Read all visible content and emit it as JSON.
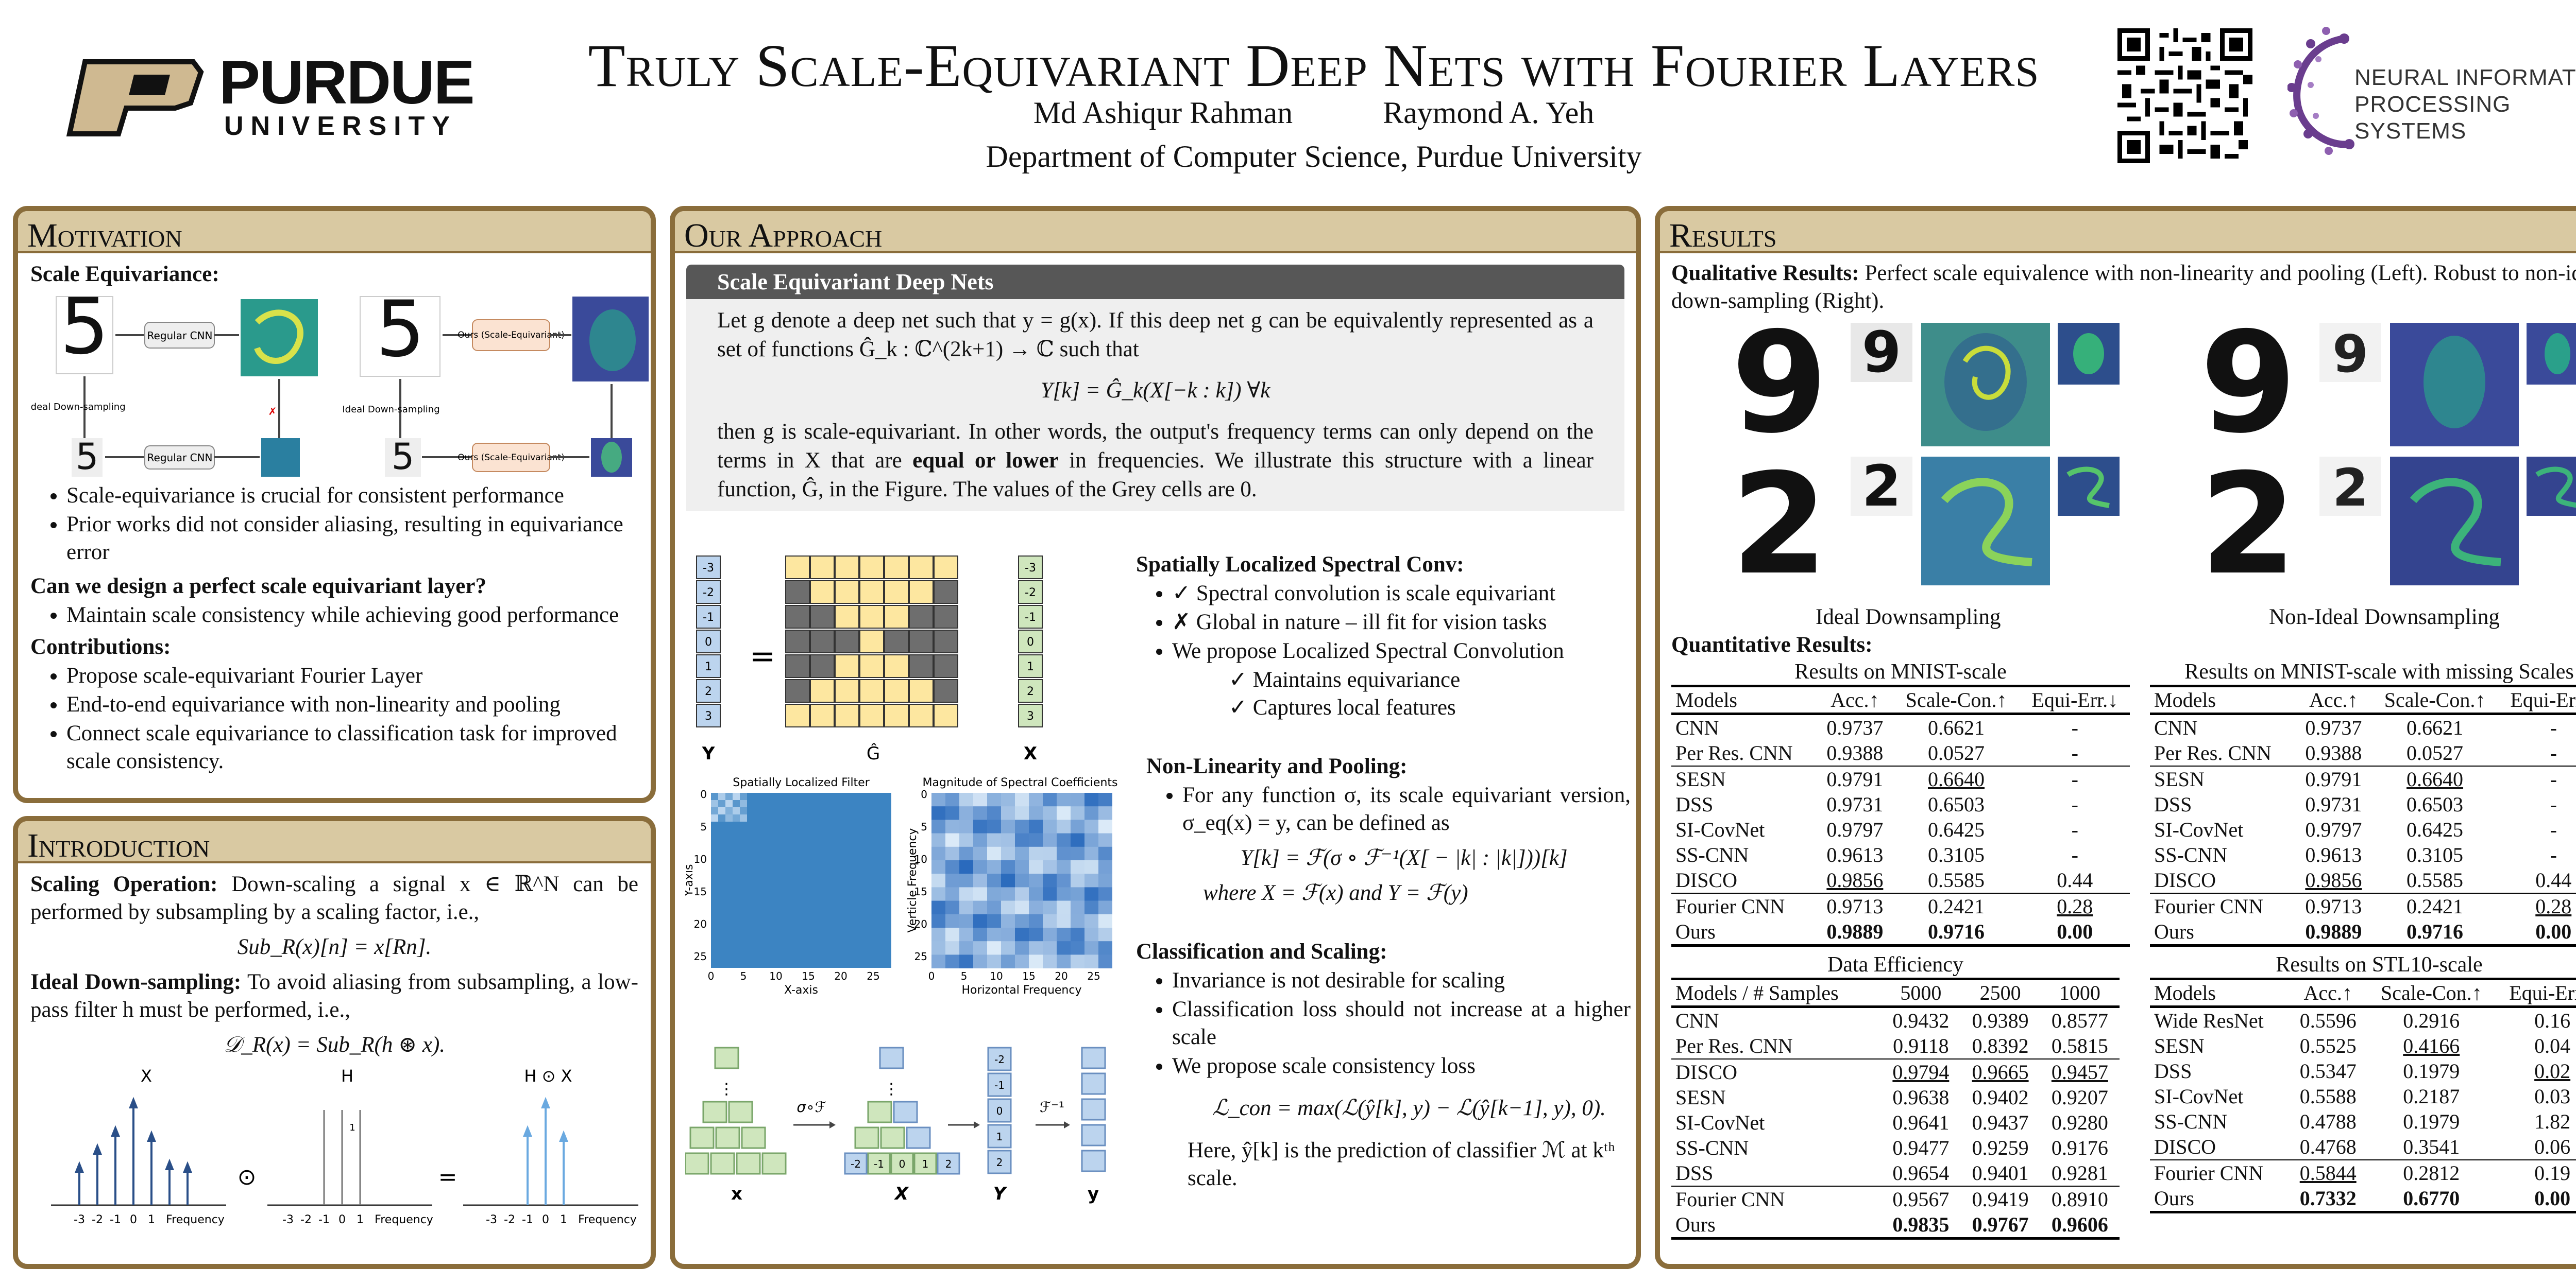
{
  "header": {
    "logo_left": "PURDUE",
    "logo_left_sub": "UNIVERSITY",
    "title": "Truly Scale-Equivariant Deep Nets with Fourier Layers",
    "authors": [
      "Md Ashiqur Rahman",
      "Raymond A. Yeh"
    ],
    "affiliation": "Department of Computer Science, Purdue University",
    "logo_right_l1": "NEURAL INFORMATION",
    "logo_right_l2": "PROCESSING SYSTEMS"
  },
  "motivation": {
    "title": "Motivation",
    "scale_eq": "Scale Equivariance:",
    "fig_labels": {
      "regular_cnn": "Regular CNN",
      "ours": "Ours (Scale-Equivariant)",
      "ideal_ds": "Ideal Down-sampling"
    },
    "bullets1": [
      "Scale-equivariance is crucial for consistent performance",
      "Prior works did not consider aliasing, resulting in equivariance error"
    ],
    "question": "Can we design a perfect scale equivariant layer?",
    "bullets2": [
      "Maintain scale consistency while achieving good performance"
    ],
    "contrib": "Contributions:",
    "bullets3": [
      "Propose scale-equivariant Fourier Layer",
      "End-to-end equivariance with non-linearity and pooling",
      "Connect scale equivariance to classification task for improved scale consistency."
    ]
  },
  "intro": {
    "title": "Introduction",
    "scaling_hdr": "Scaling Operation:",
    "scaling_txt": " Down-scaling a signal x ∈ ℝ^N can be performed by subsampling by a scaling factor, i.e.,",
    "eq1": "Sub_R(x)[n] = x[Rn].",
    "ideal_hdr": "Ideal Down-sampling:",
    "ideal_txt": " To avoid aliasing from subsampling, a low-pass filter h must be performed, i.e.,",
    "eq2": "𝒟_R(x) = Sub_R(h ⊛ x).",
    "plot_labels": {
      "x": "X",
      "h": "H",
      "hx": "H ⊙ X",
      "freq": "Frequency",
      "odot": "⊙",
      "eq": "=",
      "one": "1"
    },
    "ticks": [
      "-3",
      "-2",
      "-1",
      "0",
      "1"
    ]
  },
  "approach": {
    "title": "Our Approach",
    "sub": "Scale Equivariant Deep Nets",
    "p1": "Let g denote a deep net such that y = g(x). If this deep net g can be equivalently represented as a set of functions Ĝ_k : ℂ^(2k+1) → ℂ such that",
    "eq": "Y[k] = Ĝ_k(X[−k : k])  ∀k",
    "p2a": "then g is scale-equivariant.  In other words, the output's frequency terms can only depend on the terms in X that are ",
    "p2b": "equal or lower",
    "p2c": " in frequencies.  We illustrate this structure with a linear function, Ĝ, in the Figure. The values of the Grey cells are 0.",
    "vec_y": [
      "-3",
      "-2",
      "-1",
      "0",
      "1",
      "2",
      "3"
    ],
    "labels": {
      "Y": "Y",
      "G": "Ĝ",
      "X": "X",
      "eq": "="
    },
    "filter_title": "Spatially Localized Filter",
    "spec_title": "Magnitude of Spectral Coefficients",
    "xaxis": "X-axis",
    "yaxis": "Y-axis",
    "hf": "Horizontal Frequency",
    "vf": "Verticle Frequency",
    "axticks": [
      "0",
      "5",
      "10",
      "15",
      "20",
      "25"
    ],
    "slsc_hdr": "Spatially Localized Spectral Conv:",
    "slsc": [
      "✓ Spectral convolution is scale equivariant",
      "✗ Global in nature – ill fit for vision tasks",
      "We propose Localized Spectral Convolution"
    ],
    "slsc_sub": [
      "✓ Maintains equivariance",
      "✓ Captures local features"
    ],
    "nlp_hdr": "Non-Linearity and Pooling:",
    "nlp": "For any function σ, its scale equivariant version, σ_eq(x) = y, can be defined as",
    "nlp_eq": "Y[k] = ℱ(σ ∘ ℱ⁻¹(X[ − |k| : |k|]))[k]",
    "nlp_where": "where X = ℱ(x) and Y = ℱ(y)",
    "cs_hdr": "Classification and Scaling:",
    "cs": [
      "Invariance is not desirable for scaling",
      "Classification loss should not increase at a higher scale",
      "We propose scale consistency loss"
    ],
    "cs_eq": "ℒ_con = max(ℒ(ŷ[k], y) − ℒ(ŷ[k−1], y), 0).",
    "cs_tail": "Here, ŷ[k] is the prediction of classifier ℳ at kᵗʰ scale.",
    "diag": {
      "x": "x",
      "X": "X",
      "Y": "Y",
      "y": "y",
      "s1": "σ∘ℱ",
      "s2": "ℱ⁻¹",
      "dots": "⋮",
      "nums": [
        "-2",
        "-1",
        "0",
        "1",
        "2"
      ],
      "nums2": [
        "-2",
        "-1",
        "0",
        "1",
        "2"
      ]
    }
  },
  "results": {
    "title": "Results",
    "qual_hdr": "Qualitative Results:",
    "qual_txt": " Perfect scale equivalence with non-linearity and pooling (Left).  Robust to non-ideal down-sampling (Right).",
    "cap_left": "Ideal Downsampling",
    "cap_right": "Non-Ideal Downsampling",
    "quant_hdr": "Quantitative Results:",
    "t1": {
      "caption": "Results on MNIST-scale",
      "cols": [
        "Models",
        "Acc.↑",
        "Scale-Con.↑",
        "Equi-Err.↓"
      ],
      "rows": [
        [
          "CNN",
          "0.9737",
          "0.6621",
          "-"
        ],
        [
          "Per Res. CNN",
          "0.9388",
          "0.0527",
          "-"
        ],
        [
          "SESN",
          "0.9791",
          "0.6640",
          "-"
        ],
        [
          "DSS",
          "0.9731",
          "0.6503",
          "-"
        ],
        [
          "SI-CovNet",
          "0.9797",
          "0.6425",
          "-"
        ],
        [
          "SS-CNN",
          "0.9613",
          "0.3105",
          "-"
        ],
        [
          "DISCO",
          "0.9856",
          "0.5585",
          "0.44"
        ],
        [
          "Fourier CNN",
          "0.9713",
          "0.2421",
          "0.28"
        ],
        [
          "Ours",
          "0.9889",
          "0.9716",
          "0.00"
        ]
      ]
    },
    "t2": {
      "caption": "Results on MNIST-scale with missing Scales",
      "cols": [
        "Models",
        "Acc.↑",
        "Scale-Con.↑",
        "Equi-Err.↓"
      ],
      "rows": [
        [
          "CNN",
          "0.9737",
          "0.6621",
          "-"
        ],
        [
          "Per Res. CNN",
          "0.9388",
          "0.0527",
          "-"
        ],
        [
          "SESN",
          "0.9791",
          "0.6640",
          "-"
        ],
        [
          "DSS",
          "0.9731",
          "0.6503",
          "-"
        ],
        [
          "SI-CovNet",
          "0.9797",
          "0.6425",
          "-"
        ],
        [
          "SS-CNN",
          "0.9613",
          "0.3105",
          "-"
        ],
        [
          "DISCO",
          "0.9856",
          "0.5585",
          "0.44"
        ],
        [
          "Fourier CNN",
          "0.9713",
          "0.2421",
          "0.28"
        ],
        [
          "Ours",
          "0.9889",
          "0.9716",
          "0.00"
        ]
      ]
    },
    "t3": {
      "caption": "Data Efficiency",
      "cols": [
        "Models / # Samples",
        "5000",
        "2500",
        "1000"
      ],
      "rows": [
        [
          "CNN",
          "0.9432",
          "0.9389",
          "0.8577"
        ],
        [
          "Per Res. CNN",
          "0.9118",
          "0.8392",
          "0.5815"
        ],
        [
          "DISCO",
          "0.9794",
          "0.9665",
          "0.9457"
        ],
        [
          "SESN",
          "0.9638",
          "0.9402",
          "0.9207"
        ],
        [
          "SI-CovNet",
          "0.9641",
          "0.9437",
          "0.9280"
        ],
        [
          "SS-CNN",
          "0.9477",
          "0.9259",
          "0.9176"
        ],
        [
          "DSS",
          "0.9654",
          "0.9401",
          "0.9281"
        ],
        [
          "Fourier CNN",
          "0.9567",
          "0.9419",
          "0.8910"
        ],
        [
          "Ours",
          "0.9835",
          "0.9767",
          "0.9606"
        ]
      ]
    },
    "t4": {
      "caption": "Results on STL10-scale",
      "cols": [
        "Models",
        "Acc.↑",
        "Scale-Con.↑",
        "Equi-Err.↓"
      ],
      "rows": [
        [
          "Wide ResNet",
          "0.5596",
          "0.2916",
          "0.16"
        ],
        [
          "SESN",
          "0.5525",
          "0.4166",
          "0.04"
        ],
        [
          "DSS",
          "0.5347",
          "0.1979",
          "0.02"
        ],
        [
          "SI-CovNet",
          "0.5588",
          "0.2187",
          "0.03"
        ],
        [
          "SS-CNN",
          "0.4788",
          "0.1979",
          "1.82"
        ],
        [
          "DISCO",
          "0.4768",
          "0.3541",
          "0.06"
        ],
        [
          "Fourier CNN",
          "0.5844",
          "0.2812",
          "0.19"
        ],
        [
          "Ours",
          "0.7332",
          "0.6770",
          "0.00"
        ]
      ]
    }
  },
  "colors": {
    "gold": "#cfb991",
    "border": "#8a6d3b",
    "yellow": "#fde7a0",
    "grey": "#6e6e6e",
    "blue": "#bcd4ee",
    "green": "#cfe6bd"
  }
}
